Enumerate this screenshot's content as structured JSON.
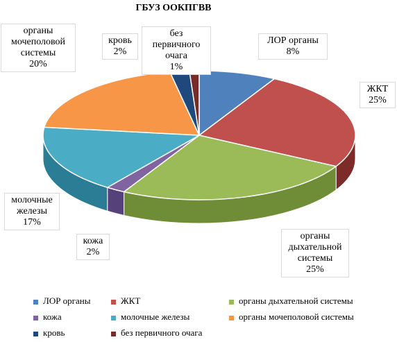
{
  "chart_data": {
    "type": "pie",
    "title": "ГБУЗ ООКПГВВ",
    "slices": [
      {
        "label": "ЛОР органы",
        "value": 8,
        "display": "8%",
        "color": "#4f81bd",
        "dark": "#2e5f98"
      },
      {
        "label": "ЖКТ",
        "value": 25,
        "display": "25%",
        "color": "#c0504d",
        "dark": "#7d2b29"
      },
      {
        "label": "органы дыхательной системы",
        "value": 25,
        "display": "25%",
        "color": "#9bbb59",
        "dark": "#6f8c36"
      },
      {
        "label": "кожа",
        "value": 2,
        "display": "2%",
        "color": "#8064a2",
        "dark": "#57417a"
      },
      {
        "label": "молочные железы",
        "value": 17,
        "display": "17%",
        "color": "#4bacc6",
        "dark": "#2a7d95"
      },
      {
        "label": "органы мочеполовой системы",
        "value": 20,
        "display": "20%",
        "color": "#f79646",
        "dark": "#c26a1f"
      },
      {
        "label": "кровь",
        "value": 2,
        "display": "2%",
        "color": "#1f497d",
        "dark": "#112b4d"
      },
      {
        "label": "без первичного очага",
        "value": 1,
        "display": "1%",
        "color": "#772c2a",
        "dark": "#4d1a19"
      }
    ],
    "slice_labels": [
      "ЛОР органы",
      "ЖКТ",
      "органы\nдыхательной\nсистемы",
      "кожа",
      "молочные\nжелезы",
      "органы\nмочеполовой\nсистемы",
      "кровь",
      "без первичного\nочага"
    ],
    "legend": {
      "position": "bottom",
      "items": [
        "ЛОР органы",
        "ЖКТ",
        "органы дыхательной системы",
        "кожа",
        "молочные железы",
        "органы мочеполовой системы",
        "кровь",
        "без первичного  очага"
      ]
    }
  }
}
